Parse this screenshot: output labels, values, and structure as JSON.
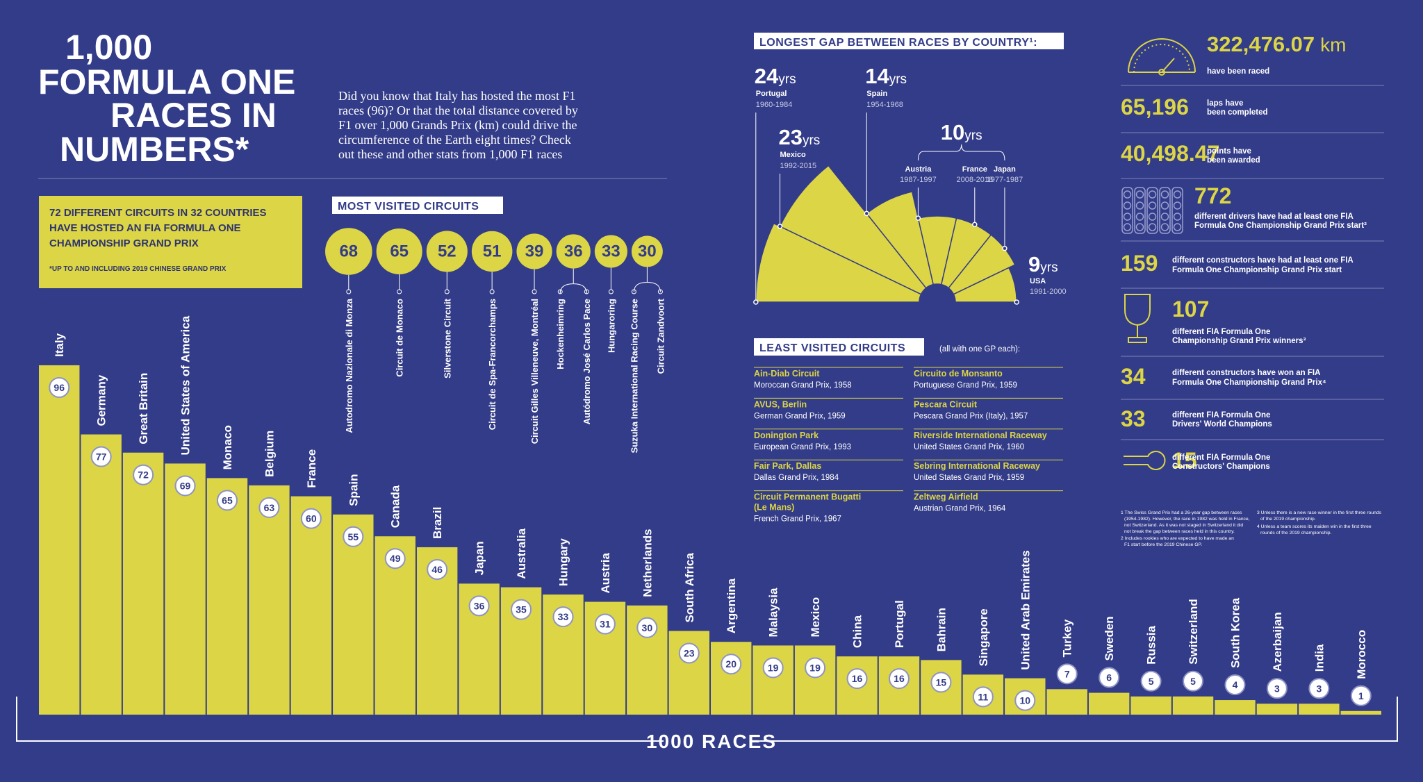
{
  "header": {
    "title_lines": [
      "1,000",
      "FORMULA ONE",
      "RACES IN",
      "NUMBERS*"
    ],
    "intro_lines": [
      "Did you know that Italy has hosted the most F1",
      "races (96)? Or that the total distance covered by",
      "F1 over 1,000 Grands Prix (km) could drive the",
      "circumference of the Earth eight times? Check",
      "out these and other stats from 1,000 F1 races"
    ]
  },
  "circuits_box": {
    "lines": [
      "72 DIFFERENT CIRCUITS IN 32 COUNTRIES",
      "HAVE HOSTED AN FIA FORMULA ONE",
      "CHAMPIONSHIP GRAND PRIX"
    ],
    "note": "*UP TO AND INCLUDING 2019 CHINESE GRAND PRIX"
  },
  "chart_data": [
    {
      "type": "bar",
      "total_label": "1000 RACES",
      "color": "#dcd545",
      "categories": [
        "Italy",
        "Germany",
        "Great Britain",
        "United States of America",
        "Monaco",
        "Belgium",
        "France",
        "Spain",
        "Canada",
        "Brazil",
        "Japan",
        "Australia",
        "Hungary",
        "Austria",
        "Netherlands",
        "South Africa",
        "Argentina",
        "Malaysia",
        "Mexico",
        "China",
        "Portugal",
        "Bahrain",
        "Singapore",
        "United Arab Emirates",
        "Turkey",
        "Sweden",
        "Russia",
        "Switzerland",
        "South Korea",
        "Azerbaijan",
        "India",
        "Morocco"
      ],
      "values": [
        96,
        77,
        72,
        69,
        65,
        63,
        60,
        55,
        49,
        46,
        36,
        35,
        33,
        31,
        30,
        23,
        20,
        19,
        19,
        16,
        16,
        15,
        11,
        10,
        7,
        6,
        5,
        5,
        4,
        3,
        3,
        1
      ]
    },
    {
      "type": "bubble",
      "title": "MOST VISITED CIRCUITS",
      "color": "#dcd545",
      "categories": [
        "Autodromo Nazionale di Monza",
        "Circuit de Monaco",
        "Silverstone Circuit",
        "Circuit de Spa-Francorchamps",
        "Circuit Gilles Villeneuve, Montréal",
        "Hockenheimring",
        "Autódromo José Carlos Pace",
        "Hungaroring",
        "Suzuka International Racing Course",
        "Circuit Zandvoort"
      ],
      "values": [
        68,
        65,
        52,
        51,
        39,
        36,
        36,
        33,
        30,
        30
      ]
    },
    {
      "type": "polar",
      "title": "LONGEST GAP BETWEEN RACES BY COUNTRY¹:",
      "color": "#dcd545",
      "unit": "yrs",
      "categories": [
        "Portugal",
        "Mexico",
        "Spain",
        "Austria",
        "France",
        "Japan",
        "USA"
      ],
      "periods": [
        "1960-1984",
        "1992-2015",
        "1954-1968",
        "1987-1997",
        "2008-2018",
        "1977-1987",
        "1991-2000"
      ],
      "values": [
        24,
        23,
        14,
        10,
        10,
        10,
        9
      ]
    }
  ],
  "least_visited": {
    "title": "LEAST VISITED CIRCUITS",
    "note": "(all with one GP each):",
    "items": [
      {
        "name": [
          "Ain-Diab Circuit"
        ],
        "event": "Moroccan Grand Prix, 1958"
      },
      {
        "name": [
          "AVUS, Berlin"
        ],
        "event": "German Grand Prix, 1959"
      },
      {
        "name": [
          "Donington Park"
        ],
        "event": "European Grand Prix, 1993"
      },
      {
        "name": [
          "Fair Park, Dallas"
        ],
        "event": "Dallas Grand Prix, 1984"
      },
      {
        "name": [
          "Circuit Permanent Bugatti",
          "(Le Mans)"
        ],
        "event": "French Grand Prix, 1967"
      },
      {
        "name": [
          "Circuito de Monsanto"
        ],
        "event": "Portuguese Grand Prix, 1959"
      },
      {
        "name": [
          "Pescara Circuit"
        ],
        "event": "Pescara Grand Prix (Italy), 1957"
      },
      {
        "name": [
          "Riverside International Raceway"
        ],
        "event": "United States Grand Prix, 1960"
      },
      {
        "name": [
          "Sebring International Raceway"
        ],
        "event": "United States Grand Prix, 1959"
      },
      {
        "name": [
          "Zeltweg Airfield"
        ],
        "event": "Austrian Grand Prix, 1964"
      }
    ]
  },
  "stats": [
    {
      "value": "322,476.07",
      "unit": "km",
      "text": [
        "have been raced"
      ]
    },
    {
      "value": "65,196",
      "text": [
        "laps have",
        "been completed"
      ]
    },
    {
      "value": "40,498.47",
      "text": [
        "points have",
        "been awarded"
      ]
    },
    {
      "value": "772",
      "text": [
        "different drivers have had at least one FIA",
        "Formula One Championship Grand Prix start²"
      ]
    },
    {
      "value": "159",
      "text": [
        "different constructors have had at least one FIA",
        "Formula One Championship Grand Prix start"
      ]
    },
    {
      "value": "107",
      "text": [
        "different FIA Formula One",
        "Championship Grand Prix winners³"
      ]
    },
    {
      "value": "34",
      "text": [
        "different constructors have won an FIA",
        "Formula One Championship Grand Prix⁴"
      ]
    },
    {
      "value": "33",
      "text": [
        "different FIA Formula One",
        "Drivers' World Champions"
      ]
    },
    {
      "value": "15",
      "text": [
        "different FIA Formula One",
        "Constructors' Champions"
      ]
    }
  ],
  "footnotes": [
    [
      "1 The Swiss Grand Prix had a 26-year gap between races",
      "(1954-1982). However, the race in 1982 was held in France,",
      "not Switzerland. As it was not staged in Switzerland it did",
      "not break the gap between races held in this country."
    ],
    [
      "2 Includes rookies who are expected to have made an",
      "F1 start before the 2019 Chinese GP."
    ],
    [
      "3 Unless there is a new race winner in the first three rounds",
      "of the 2019 championship."
    ],
    [
      "4 Unless a team scores its maiden win in the first three",
      "rounds of the 2019 championship."
    ]
  ]
}
